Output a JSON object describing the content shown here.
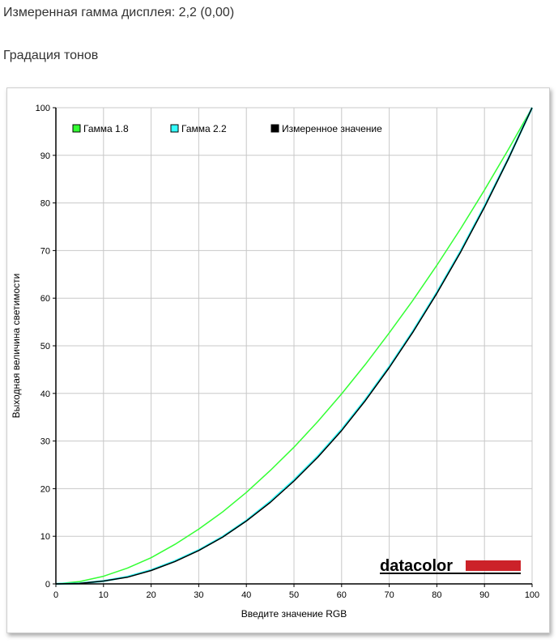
{
  "header": {
    "gamma_text": "Измеренная гамма дисплея: 2,2 (0,00)",
    "section_title": "Градация тонов"
  },
  "logo": {
    "text": "datacolor",
    "accent_color": "#cc2229"
  },
  "chart_data": {
    "type": "line",
    "xlabel": "Введите значение RGB",
    "ylabel": "Выходная величина светимости",
    "xlim": [
      0,
      100
    ],
    "ylim": [
      0,
      100
    ],
    "xticks": [
      0,
      10,
      20,
      30,
      40,
      50,
      60,
      70,
      80,
      90,
      100
    ],
    "yticks": [
      0,
      10,
      20,
      30,
      40,
      50,
      60,
      70,
      80,
      90,
      100
    ],
    "grid": true,
    "legend_position": "top-left",
    "series": [
      {
        "name": "Гамма 1.8",
        "color": "#33ff33",
        "x": [
          0,
          5,
          10,
          15,
          20,
          25,
          30,
          35,
          40,
          45,
          50,
          55,
          60,
          65,
          70,
          75,
          80,
          85,
          90,
          95,
          100
        ],
        "y": [
          0,
          0.5,
          1.6,
          3.3,
          5.5,
          8.3,
          11.5,
          15.1,
          19.2,
          23.8,
          28.7,
          34.1,
          39.9,
          46.1,
          52.7,
          59.6,
          66.9,
          74.6,
          82.7,
          91.2,
          100
        ]
      },
      {
        "name": "Гамма 2.2",
        "color": "#33ffff",
        "x": [
          0,
          5,
          10,
          15,
          20,
          25,
          30,
          35,
          40,
          45,
          50,
          55,
          60,
          65,
          70,
          75,
          80,
          85,
          90,
          95,
          100
        ],
        "y": [
          0,
          0.1,
          0.6,
          1.5,
          2.9,
          4.8,
          7.1,
          9.9,
          13.3,
          17.3,
          21.8,
          26.8,
          32.4,
          38.7,
          45.6,
          53.1,
          61.2,
          69.9,
          79.3,
          89.3,
          100
        ]
      },
      {
        "name": "Измеренное значение",
        "color": "#000000",
        "x": [
          0,
          5,
          10,
          15,
          20,
          25,
          30,
          35,
          40,
          45,
          50,
          55,
          60,
          65,
          70,
          75,
          80,
          85,
          90,
          95,
          100
        ],
        "y": [
          0,
          0.1,
          0.6,
          1.4,
          2.8,
          4.7,
          7.0,
          9.8,
          13.2,
          17.1,
          21.6,
          26.6,
          32.2,
          38.5,
          45.4,
          52.9,
          61.0,
          69.7,
          79.1,
          89.2,
          100
        ]
      }
    ]
  }
}
